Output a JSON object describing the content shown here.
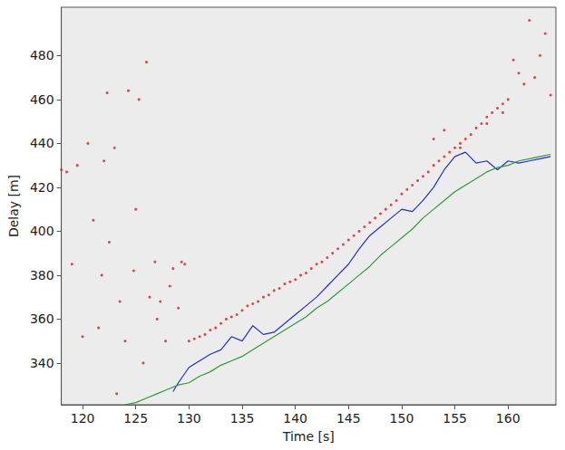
{
  "chart_data": {
    "type": "scatter",
    "x_label": "Time [s]",
    "y_label": "Delay [m]",
    "xlim": [
      118,
      164.5
    ],
    "ylim": [
      321,
      502
    ],
    "xticks": [
      120,
      125,
      130,
      135,
      140,
      145,
      150,
      155,
      160
    ],
    "yticks": [
      340,
      360,
      380,
      400,
      420,
      440,
      460,
      480
    ],
    "grid": false,
    "series": [
      {
        "type": "scatter",
        "marker": "circle",
        "color": "#d42020",
        "x": [
          130,
          130.5,
          131,
          131.5,
          132,
          132.5,
          133,
          133.5,
          134,
          134.5,
          135,
          135.5,
          136,
          136.5,
          137,
          137.5,
          138,
          138.5,
          139,
          139.5,
          140,
          140.5,
          141,
          141.5,
          142,
          142.5,
          143,
          143.5,
          144,
          144.5,
          145,
          145.5,
          146,
          146.5,
          147,
          147.5,
          148,
          148.5,
          149,
          149.5,
          150,
          150.5,
          151,
          151.5,
          152,
          152.5,
          153,
          153.5,
          154,
          154.5,
          155,
          155.5,
          156,
          156.5,
          157,
          157.5,
          158,
          158.5,
          159,
          159.5,
          160
        ],
        "values": [
          350,
          351,
          352,
          353,
          355,
          356,
          358,
          360,
          361,
          362,
          364,
          366,
          367,
          368,
          370,
          371,
          373,
          374,
          376,
          377,
          378,
          380,
          381,
          383,
          385,
          386,
          388,
          390,
          392,
          394,
          396,
          398,
          400,
          402,
          404,
          406,
          408,
          410,
          412,
          414,
          417,
          419,
          421,
          423,
          425,
          427,
          430,
          432,
          434,
          436,
          438,
          440,
          442,
          444,
          447,
          449,
          452,
          454,
          456,
          458,
          460
        ]
      },
      {
        "type": "scatter",
        "marker": "circle",
        "color": "#d42020",
        "x": [
          118,
          118.5,
          119,
          119.5,
          120,
          120.5,
          121,
          121.5,
          121.8,
          122,
          122.3,
          122.5,
          123,
          123.2,
          123.5,
          124,
          124.3,
          124.8,
          125,
          125.3,
          125.7,
          126,
          126.3,
          126.8,
          127,
          127.3,
          127.8,
          128.2,
          128.5,
          129,
          129.3,
          129.6,
          153,
          154,
          155.5,
          158,
          159.5,
          160.5,
          161,
          161.5,
          162,
          162.5,
          163,
          163.5,
          164
        ],
        "values": [
          428,
          427,
          385,
          430,
          352,
          440,
          405,
          356,
          380,
          432,
          463,
          395,
          438,
          326,
          368,
          350,
          464,
          382,
          410,
          460,
          340,
          477,
          370,
          386,
          360,
          368,
          350,
          375,
          383,
          365,
          386,
          385,
          442,
          446,
          438,
          449,
          454,
          478,
          472,
          467,
          496,
          470,
          480,
          490,
          462
        ]
      },
      {
        "type": "line",
        "line_style": "solid",
        "color": "#2030c8",
        "x": [
          128.5,
          129,
          130,
          131,
          132,
          133,
          134,
          135,
          136,
          137,
          138,
          139,
          140,
          141,
          142,
          143,
          144,
          145,
          146,
          147,
          148,
          149,
          150,
          151,
          152,
          153,
          154,
          155,
          156,
          157,
          158,
          159,
          160,
          161,
          162,
          163,
          164
        ],
        "values": [
          327,
          331,
          338,
          341,
          344,
          346,
          352,
          350,
          357,
          353,
          354,
          358,
          362,
          366,
          370,
          375,
          380,
          385,
          392,
          398,
          402,
          406,
          410,
          409,
          414,
          420,
          428,
          434,
          436,
          431,
          432,
          428,
          432,
          431,
          432,
          433,
          434
        ]
      },
      {
        "type": "line",
        "line_style": "solid",
        "color": "#2e9a3a",
        "x": [
          124,
          125,
          126,
          127,
          128,
          129,
          130,
          131,
          132,
          133,
          134,
          135,
          136,
          137,
          138,
          139,
          140,
          141,
          142,
          143,
          144,
          145,
          146,
          147,
          148,
          149,
          150,
          151,
          152,
          153,
          154,
          155,
          156,
          157,
          158,
          159,
          160,
          161,
          162,
          163,
          164
        ],
        "values": [
          321,
          322,
          324,
          326,
          328,
          330,
          331,
          334,
          336,
          339,
          341,
          343,
          346,
          349,
          352,
          355,
          358,
          361,
          365,
          368,
          372,
          376,
          380,
          384,
          389,
          393,
          397,
          401,
          406,
          410,
          414,
          418,
          421,
          424,
          427,
          429,
          430,
          432,
          433,
          434,
          435
        ]
      }
    ]
  }
}
